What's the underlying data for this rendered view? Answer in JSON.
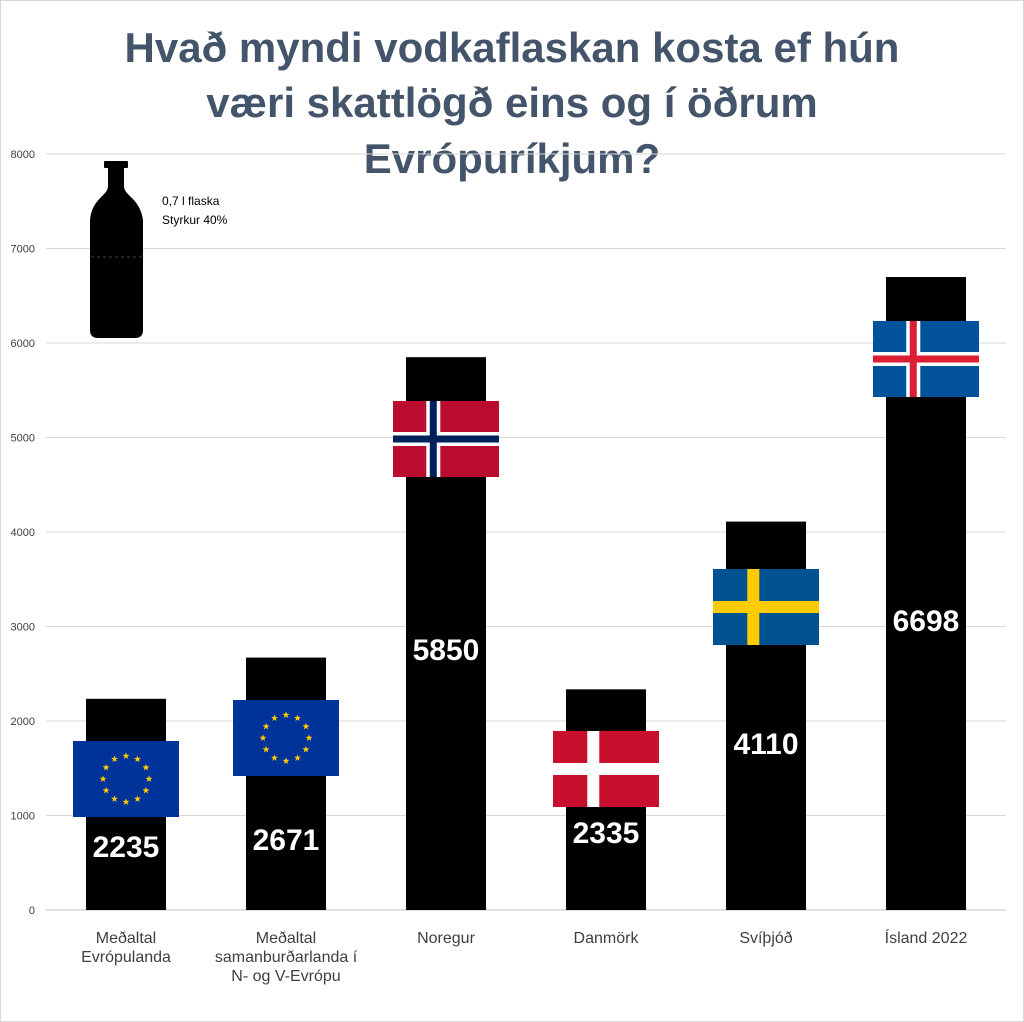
{
  "chart_data": {
    "type": "bar",
    "title_lines": [
      "Hvað myndi vodkaflaskan kosta ef hún",
      "væri skattlögð eins og í öðrum",
      "Evrópuríkjum?"
    ],
    "categories": [
      [
        "Meðaltal",
        "Evrópulanda"
      ],
      [
        "Meðaltal",
        "samanburðarlanda í",
        "N- og V-Evrópu"
      ],
      [
        "Noregur"
      ],
      [
        "Danmörk"
      ],
      [
        "Svíþjóð"
      ],
      [
        "Ísland 2022"
      ]
    ],
    "values": [
      2235,
      2671,
      5850,
      2335,
      4110,
      6698
    ],
    "flags": [
      "eu",
      "eu",
      "norway",
      "denmark",
      "sweden",
      "iceland"
    ],
    "ylim": [
      0,
      8000
    ],
    "yticks": [
      0,
      1000,
      2000,
      3000,
      4000,
      5000,
      6000,
      7000,
      8000
    ],
    "grid": true,
    "bar_color": "#000000",
    "title_color": "#44546a",
    "annotation": [
      "0,7 l flaska",
      "Styrkur 40%"
    ]
  }
}
